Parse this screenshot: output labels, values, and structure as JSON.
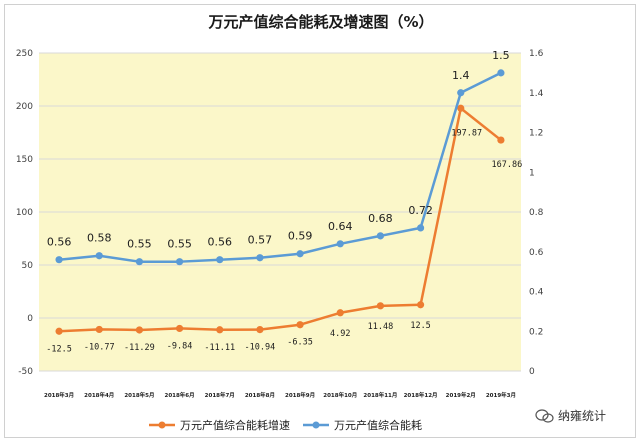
{
  "chart_data": {
    "type": "line",
    "title": "万元产值综合能耗及增速图（%）",
    "categories": [
      "2018年3月",
      "2018年4月",
      "2018年5月",
      "2018年6月",
      "2018年7月",
      "2018年8月",
      "2018年9月",
      "2018年10月",
      "2018年11月",
      "2018年12月",
      "2019年2月",
      "2019年3月"
    ],
    "y_left": {
      "min": -50,
      "max": 250,
      "ticks": [
        "-50",
        "0",
        "50",
        "100",
        "150",
        "200",
        "250"
      ]
    },
    "y_right": {
      "min": 0,
      "max": 1.6,
      "ticks": [
        "0",
        "0.2",
        "0.4",
        "0.6",
        "0.8",
        "1",
        "1.2",
        "1.4",
        "1.6"
      ]
    },
    "grid": true,
    "legend_position": "bottom",
    "series": [
      {
        "name": "万元产值综合能耗增速",
        "axis": "left",
        "color": "#ED7D31",
        "values": [
          -12.5,
          -10.77,
          -11.29,
          -9.84,
          -11.11,
          -10.94,
          -6.35,
          4.92,
          11.48,
          12.5,
          197.87,
          167.86
        ],
        "labels": [
          "-12.5",
          "-10.77",
          "-11.29",
          "-9.84",
          "-11.11",
          "-10.94",
          "-6.35",
          "4.92",
          "11.48",
          "12.5",
          "197.87",
          "167.86"
        ]
      },
      {
        "name": "万元产值综合能耗",
        "axis": "right",
        "color": "#5B9BD5",
        "values": [
          0.56,
          0.58,
          0.55,
          0.55,
          0.56,
          0.57,
          0.59,
          0.64,
          0.68,
          0.72,
          1.4,
          1.5
        ],
        "labels": [
          "0.56",
          "0.58",
          "0.55",
          "0.55",
          "0.56",
          "0.57",
          "0.59",
          "0.64",
          "0.68",
          "0.72",
          "1.4",
          "1.5"
        ]
      }
    ]
  },
  "watermark": {
    "text": "纳雍统计",
    "icon": "wechat-icon"
  }
}
